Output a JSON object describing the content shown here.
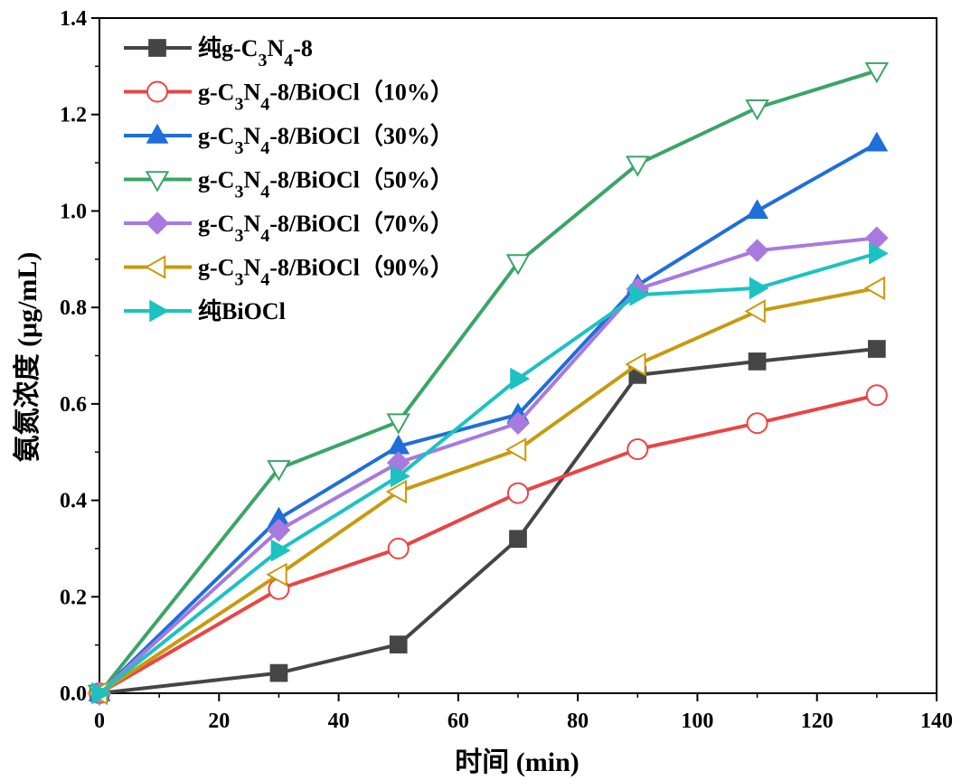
{
  "chart_data": {
    "type": "line",
    "title": "",
    "xlabel": "时间 (min)",
    "ylabel": "氨氮浓度 (μg/mL)",
    "xlim": [
      0,
      140
    ],
    "ylim": [
      0,
      1.4
    ],
    "xticks": [
      0,
      20,
      40,
      60,
      80,
      100,
      120,
      140
    ],
    "yticks": [
      0.0,
      0.2,
      0.4,
      0.6,
      0.8,
      1.0,
      1.2,
      1.4
    ],
    "xtick_labels": [
      "0",
      "20",
      "40",
      "60",
      "80",
      "100",
      "120",
      "140"
    ],
    "ytick_labels": [
      "0.0",
      "0.2",
      "0.4",
      "0.6",
      "0.8",
      "1.0",
      "1.2",
      "1.4"
    ],
    "legend_position": "top-left",
    "x": [
      0,
      30,
      50,
      70,
      90,
      110,
      130
    ],
    "series": [
      {
        "name": "纯g-C3N4-8",
        "label_parts": [
          {
            "t": "纯g-C"
          },
          {
            "t": "3",
            "sub": true
          },
          {
            "t": "N"
          },
          {
            "t": "4",
            "sub": true
          },
          {
            "t": "-8"
          }
        ],
        "color": "#454545",
        "marker": "square",
        "filled": true,
        "values": [
          0.0,
          0.042,
          0.101,
          0.32,
          0.66,
          0.688,
          0.714
        ]
      },
      {
        "name": "g-C3N4-8/BiOCl（10%）",
        "label_parts": [
          {
            "t": "g-C"
          },
          {
            "t": "3",
            "sub": true
          },
          {
            "t": "N"
          },
          {
            "t": "4",
            "sub": true
          },
          {
            "t": "-8/BiOCl（10%）"
          }
        ],
        "color": "#e94545",
        "marker": "circle",
        "filled": false,
        "values": [
          0.0,
          0.216,
          0.3,
          0.415,
          0.506,
          0.56,
          0.618
        ]
      },
      {
        "name": "g-C3N4-8/BiOCl（30%）",
        "label_parts": [
          {
            "t": "g-C"
          },
          {
            "t": "3",
            "sub": true
          },
          {
            "t": "N"
          },
          {
            "t": "4",
            "sub": true
          },
          {
            "t": "-8/BiOCl（30%）"
          }
        ],
        "color": "#1e6fd9",
        "marker": "triangle-up",
        "filled": true,
        "values": [
          0.0,
          0.362,
          0.512,
          0.578,
          0.846,
          1.0,
          1.14
        ]
      },
      {
        "name": "g-C3N4-8/BiOCl（50%）",
        "label_parts": [
          {
            "t": "g-C"
          },
          {
            "t": "3",
            "sub": true
          },
          {
            "t": "N"
          },
          {
            "t": "4",
            "sub": true
          },
          {
            "t": "-8/BiOCl（50%）"
          }
        ],
        "color": "#3aa567",
        "marker": "triangle-down",
        "filled": false,
        "values": [
          0.0,
          0.466,
          0.563,
          0.893,
          1.097,
          1.214,
          1.291
        ]
      },
      {
        "name": "g-C3N4-8/BiOCl（70%）",
        "label_parts": [
          {
            "t": "g-C"
          },
          {
            "t": "3",
            "sub": true
          },
          {
            "t": "N"
          },
          {
            "t": "4",
            "sub": true
          },
          {
            "t": "-8/BiOCl（70%）"
          }
        ],
        "color": "#a879df",
        "marker": "diamond",
        "filled": true,
        "values": [
          0.0,
          0.338,
          0.478,
          0.56,
          0.838,
          0.918,
          0.944
        ]
      },
      {
        "name": "g-C3N4-8/BiOCl（90%）",
        "label_parts": [
          {
            "t": "g-C"
          },
          {
            "t": "3",
            "sub": true
          },
          {
            "t": "N"
          },
          {
            "t": "4",
            "sub": true
          },
          {
            "t": "-8/BiOCl（90%）"
          }
        ],
        "color": "#c89b0e",
        "marker": "triangle-left",
        "filled": false,
        "values": [
          0.0,
          0.246,
          0.418,
          0.505,
          0.682,
          0.792,
          0.84
        ]
      },
      {
        "name": "纯BiOCl",
        "label_parts": [
          {
            "t": "纯BiOCl"
          }
        ],
        "color": "#1cc2c2",
        "marker": "triangle-right",
        "filled": true,
        "values": [
          0.0,
          0.296,
          0.45,
          0.652,
          0.826,
          0.84,
          0.912
        ]
      }
    ]
  }
}
